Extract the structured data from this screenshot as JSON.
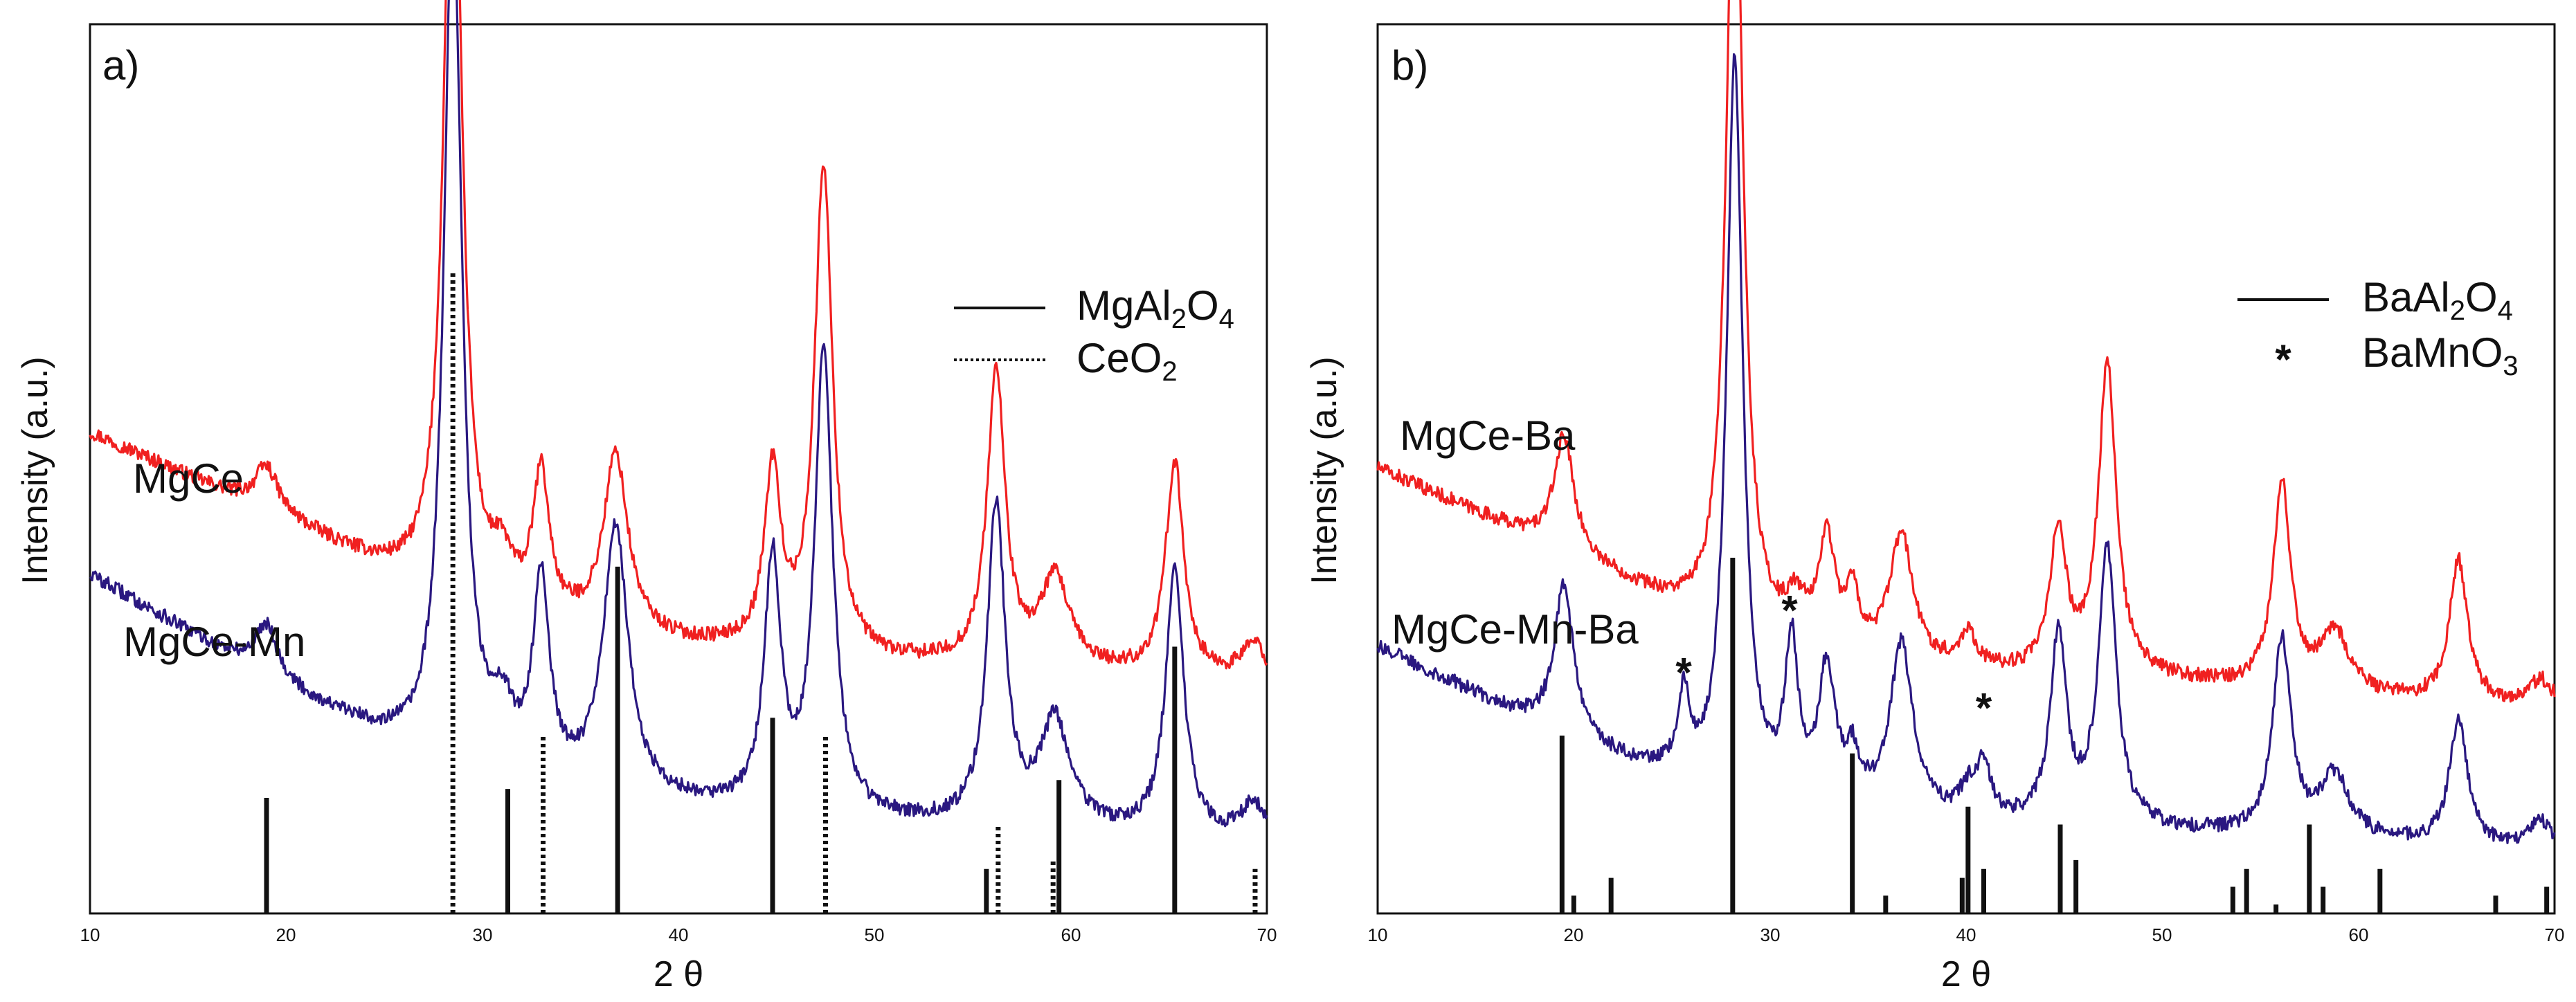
{
  "chart_data": [
    {
      "type": "line",
      "panel_label": "a)",
      "xlabel": "2 θ",
      "ylabel": "Intensity (a.u.)",
      "xlim": [
        10,
        70
      ],
      "xticks": [
        "10",
        "20",
        "30",
        "40",
        "50",
        "60",
        "70"
      ],
      "y_ticks_shown": false,
      "legend": {
        "placement": "top-right",
        "entries": [
          {
            "style": "solid",
            "label_parts": [
              "MgAl",
              "2",
              "O",
              "4"
            ]
          },
          {
            "style": "dotted",
            "label_parts": [
              "CeO",
              "2"
            ]
          }
        ]
      },
      "series": [
        {
          "name": "MgCe",
          "color": "#f02020",
          "baseline": [
            [
              10,
              0.54
            ],
            [
              20,
              0.44
            ],
            [
              27,
              0.36
            ],
            [
              30,
              0.33
            ],
            [
              40,
              0.3
            ],
            [
              50,
              0.28
            ],
            [
              60,
              0.27
            ],
            [
              70,
              0.26
            ]
          ],
          "peaks": [
            [
              19,
              0.05,
              0.7
            ],
            [
              28.5,
              0.96,
              0.55
            ],
            [
              31,
              0.05,
              0.7
            ],
            [
              33,
              0.16,
              0.5
            ],
            [
              36.8,
              0.2,
              0.75
            ],
            [
              44.8,
              0.2,
              0.5
            ],
            [
              47.4,
              0.55,
              0.55
            ],
            [
              56.2,
              0.33,
              0.55
            ],
            [
              59.2,
              0.1,
              0.9
            ],
            [
              65.3,
              0.24,
              0.55
            ],
            [
              69.3,
              0.04,
              0.7
            ]
          ]
        },
        {
          "name": "MgCe-Mn",
          "color": "#2a1880",
          "baseline": [
            [
              10,
              0.38
            ],
            [
              20,
              0.25
            ],
            [
              27,
              0.17
            ],
            [
              30,
              0.15
            ],
            [
              40,
              0.12
            ],
            [
              50,
              0.1
            ],
            [
              60,
              0.09
            ],
            [
              70,
              0.08
            ]
          ],
          "peaks": [
            [
              19,
              0.06,
              0.7
            ],
            [
              28.5,
              0.98,
              0.55
            ],
            [
              31,
              0.06,
              0.7
            ],
            [
              33,
              0.22,
              0.5
            ],
            [
              36.8,
              0.3,
              0.75
            ],
            [
              44.8,
              0.28,
              0.5
            ],
            [
              47.4,
              0.52,
              0.55
            ],
            [
              56.2,
              0.36,
              0.55
            ],
            [
              59.2,
              0.12,
              0.9
            ],
            [
              65.3,
              0.3,
              0.55
            ],
            [
              69.3,
              0.04,
              0.7
            ]
          ]
        }
      ],
      "reference_lines": [
        {
          "phase": "MgAl2O4",
          "style": "solid",
          "positions": [
            [
              19.0,
              0.13
            ],
            [
              31.3,
              0.14
            ],
            [
              36.9,
              0.39
            ],
            [
              44.8,
              0.22
            ],
            [
              55.7,
              0.05
            ],
            [
              59.4,
              0.15
            ],
            [
              65.3,
              0.3
            ]
          ]
        },
        {
          "phase": "CeO2",
          "style": "dotted",
          "positions": [
            [
              28.5,
              0.72
            ],
            [
              33.1,
              0.2
            ],
            [
              47.5,
              0.2
            ],
            [
              56.3,
              0.1
            ],
            [
              59.1,
              0.06
            ],
            [
              69.4,
              0.05
            ]
          ]
        }
      ]
    },
    {
      "type": "line",
      "panel_label": "b)",
      "xlabel": "2 θ",
      "ylabel": "Intensity (a.u.)",
      "xlim": [
        10,
        70
      ],
      "xticks": [
        "10",
        "20",
        "30",
        "40",
        "50",
        "60",
        "70"
      ],
      "y_ticks_shown": false,
      "legend": {
        "placement": "top-right",
        "entries": [
          {
            "style": "solid",
            "label_parts": [
              "BaAl",
              "2",
              "O",
              "4"
            ]
          },
          {
            "style": "star",
            "label_parts": [
              "BaMnO",
              "3"
            ]
          }
        ]
      },
      "annotations": [
        {
          "text": "*",
          "x": 25.6,
          "y": 0.255
        },
        {
          "text": "*",
          "x": 31.0,
          "y": 0.325
        },
        {
          "text": "*",
          "x": 40.9,
          "y": 0.215
        }
      ],
      "series": [
        {
          "name": "MgCe-Ba",
          "color": "#f02020",
          "baseline": [
            [
              10,
              0.5
            ],
            [
              20,
              0.4
            ],
            [
              27,
              0.32
            ],
            [
              30,
              0.3
            ],
            [
              40,
              0.27
            ],
            [
              50,
              0.26
            ],
            [
              60,
              0.24
            ],
            [
              70,
              0.23
            ]
          ],
          "peaks": [
            [
              19.5,
              0.13,
              0.6
            ],
            [
              28.2,
              0.96,
              0.5
            ],
            [
              31.3,
              0.04,
              0.6
            ],
            [
              32.9,
              0.12,
              0.5
            ],
            [
              34.2,
              0.06,
              0.4
            ],
            [
              36.7,
              0.14,
              0.7
            ],
            [
              40.1,
              0.04,
              0.5
            ],
            [
              44.7,
              0.16,
              0.5
            ],
            [
              47.2,
              0.35,
              0.55
            ],
            [
              56.1,
              0.23,
              0.55
            ],
            [
              58.8,
              0.07,
              0.9
            ],
            [
              65.1,
              0.16,
              0.55
            ],
            [
              69.3,
              0.03,
              0.7
            ]
          ]
        },
        {
          "name": "MgCe-Mn-Ba",
          "color": "#2a1880",
          "baseline": [
            [
              10,
              0.3
            ],
            [
              20,
              0.19
            ],
            [
              27,
              0.13
            ],
            [
              30,
              0.12
            ],
            [
              40,
              0.1
            ],
            [
              50,
              0.09
            ],
            [
              60,
              0.08
            ],
            [
              70,
              0.07
            ]
          ],
          "peaks": [
            [
              19.5,
              0.17,
              0.6
            ],
            [
              25.6,
              0.09,
              0.35
            ],
            [
              28.2,
              0.83,
              0.5
            ],
            [
              31.1,
              0.17,
              0.4
            ],
            [
              32.9,
              0.15,
              0.5
            ],
            [
              34.2,
              0.05,
              0.4
            ],
            [
              36.7,
              0.19,
              0.7
            ],
            [
              40.1,
              0.03,
              0.5
            ],
            [
              40.9,
              0.06,
              0.4
            ],
            [
              44.7,
              0.21,
              0.5
            ],
            [
              47.2,
              0.31,
              0.55
            ],
            [
              56.1,
              0.22,
              0.55
            ],
            [
              58.8,
              0.07,
              0.9
            ],
            [
              65.1,
              0.14,
              0.55
            ],
            [
              69.3,
              0.03,
              0.7
            ]
          ]
        }
      ],
      "reference_lines": [
        {
          "phase": "BaAl2O4",
          "style": "solid",
          "positions": [
            [
              19.4,
              0.2
            ],
            [
              20.0,
              0.02
            ],
            [
              21.9,
              0.04
            ],
            [
              28.1,
              0.4
            ],
            [
              34.2,
              0.18
            ],
            [
              35.9,
              0.02
            ],
            [
              39.8,
              0.04
            ],
            [
              40.1,
              0.12
            ],
            [
              40.9,
              0.05
            ],
            [
              44.8,
              0.1
            ],
            [
              45.6,
              0.06
            ],
            [
              53.6,
              0.03
            ],
            [
              54.3,
              0.05
            ],
            [
              55.8,
              0.01
            ],
            [
              57.5,
              0.1
            ],
            [
              58.2,
              0.03
            ],
            [
              61.1,
              0.05
            ],
            [
              67.0,
              0.02
            ],
            [
              69.6,
              0.03
            ]
          ]
        }
      ]
    }
  ]
}
